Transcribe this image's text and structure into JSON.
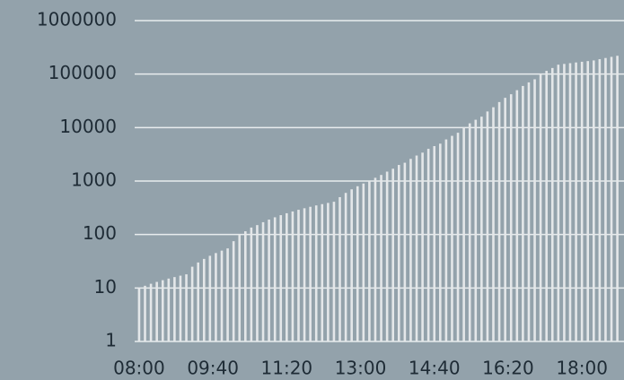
{
  "chart_data": {
    "type": "bar",
    "log_scale": true,
    "grid": true,
    "color": "#e4e7e9",
    "grid_color": "#e8ecee",
    "x": [
      480,
      488,
      496,
      504,
      512,
      520,
      528,
      536,
      544,
      552,
      560,
      568,
      576,
      584,
      592,
      600,
      608,
      616,
      624,
      632,
      640,
      648,
      656,
      664,
      672,
      680,
      688,
      696,
      704,
      712,
      720,
      728,
      736,
      744,
      752,
      760,
      768,
      776,
      784,
      792,
      800,
      808,
      816,
      824,
      832,
      840,
      848,
      856,
      864,
      872,
      880,
      888,
      896,
      904,
      912,
      920,
      928,
      936,
      944,
      952,
      960,
      968,
      976,
      984,
      992,
      1000,
      1008,
      1016,
      1024,
      1032,
      1040,
      1048,
      1056,
      1064,
      1072,
      1080,
      1088,
      1096,
      1104,
      1112,
      1120,
      1128
    ],
    "values": [
      10,
      11,
      12,
      13,
      14,
      15,
      16,
      17,
      18,
      25,
      30,
      35,
      40,
      45,
      50,
      55,
      75,
      100,
      115,
      135,
      150,
      170,
      190,
      210,
      230,
      250,
      270,
      290,
      310,
      330,
      350,
      370,
      390,
      410,
      500,
      600,
      700,
      800,
      900,
      1000,
      1150,
      1300,
      1500,
      1700,
      2000,
      2200,
      2600,
      3000,
      3400,
      4000,
      4500,
      5000,
      6000,
      7000,
      8000,
      10000,
      12000,
      14000,
      16000,
      20000,
      24000,
      30000,
      36000,
      42000,
      50000,
      60000,
      70000,
      80000,
      100000,
      115000,
      130000,
      150000,
      155000,
      160000,
      165000,
      170000,
      175000,
      180000,
      190000,
      200000,
      210000,
      220000
    ],
    "xlim": [
      474,
      1137
    ],
    "xticks": [
      {
        "value": 480,
        "label": "08:00"
      },
      {
        "value": 580,
        "label": "09:40"
      },
      {
        "value": 680,
        "label": "11:20"
      },
      {
        "value": 780,
        "label": "13:00"
      },
      {
        "value": 880,
        "label": "14:40"
      },
      {
        "value": 980,
        "label": "16:20"
      },
      {
        "value": 1080,
        "label": "18:00"
      }
    ],
    "ylim": [
      1,
      1000000
    ],
    "yticks": [
      1,
      10,
      100,
      1000,
      10000,
      100000,
      1000000
    ]
  }
}
